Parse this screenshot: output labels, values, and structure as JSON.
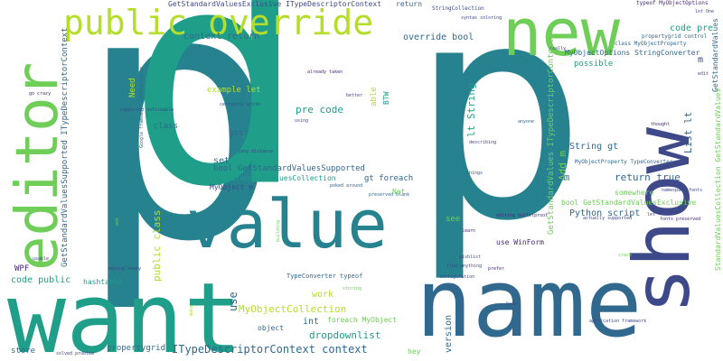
{
  "colors": {
    "background": "#ffffff",
    "palette": [
      "#440154",
      "#482878",
      "#3e4989",
      "#31688e",
      "#26828e",
      "#1f9e89",
      "#35b779",
      "#6ece58",
      "#b5de2b",
      "#fde725"
    ]
  },
  "words": [
    "p",
    "p",
    "p",
    "new",
    "name",
    "want",
    "show",
    "value",
    "editor",
    "public override",
    "GetStandardValuesExclusive ITypeDescriptorContext",
    "return",
    "StringCollection",
    "typeof MyObjectOptions",
    "context return",
    "override bool",
    "code pre",
    "MyObjectOptions StringConverter",
    "class MyObjectProperty",
    "propertygrid control",
    "GetStandardValues",
    "lot One",
    "m",
    "edit",
    "pre code",
    "example let",
    "Need",
    "lt String",
    "able",
    "BTW",
    "better",
    "certainly write",
    "already taken",
    "using",
    "anyone",
    "supported noticeable",
    "go crazy",
    "Google framework configuration",
    "got",
    "try use",
    "long distance",
    "class",
    "set",
    "bool GetStandardValuesSupported",
    "StandardValuesCollection",
    "MyObject m",
    "gt foreach",
    "poked around",
    "preserved blank",
    "Net",
    "String gt",
    "List lt",
    "return true",
    "mm",
    "Add m",
    "somewhere",
    "bool GetStandardValuesExclusive",
    "MyObjectProperty TypeConverter",
    "describing",
    "things",
    "thought",
    "StandardValuesCollection GetStandardValues",
    "GetStandardValues ITypeDescriptorContext",
    "Python script",
    "namespace fonts",
    "actually supported",
    "fonts preserved",
    "see",
    "editing bulletproof",
    "learn",
    "use WinForm",
    "wishlist",
    "find anything",
    "prefer",
    "configuration",
    "crack",
    "ask",
    "public class",
    "ITypeDescriptorContext context",
    "GetStandardValuesSupported ITypeDescriptorContext",
    "WPF",
    "making heavy",
    "hashtable",
    "code public",
    "TypeConverter typeof",
    "storing",
    "MyObjectCollection",
    "use",
    "work",
    "int",
    "foreach MyObject",
    "dropdownlist",
    "object",
    "store",
    "propertygrid",
    "solved problem",
    "version",
    "application framework",
    "hey",
    "make",
    "building",
    "possible",
    "really",
    "syntax coloring",
    "let",
    "usable",
    "hook"
  ]
}
